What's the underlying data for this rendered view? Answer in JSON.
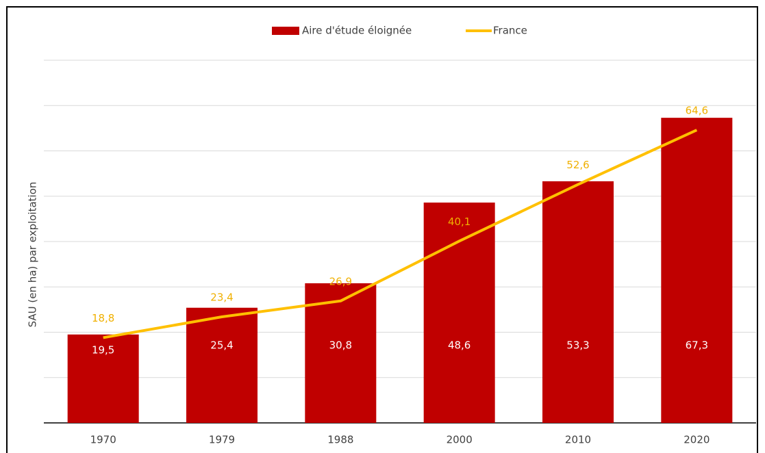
{
  "chart_data": {
    "type": "bar-line",
    "y_label": "SAU (en ha) par exploitation",
    "categories": [
      "1970",
      "1979",
      "1988",
      "2000",
      "2010",
      "2020"
    ],
    "series": [
      {
        "name": "Aire d'étude éloignée",
        "type": "bar",
        "color": "#c00000",
        "values": [
          19.5,
          25.4,
          30.8,
          48.6,
          53.3,
          67.3
        ],
        "value_labels": [
          "19,5",
          "25,4",
          "30,8",
          "48,6",
          "53,3",
          "67,3"
        ]
      },
      {
        "name": "France",
        "type": "line",
        "color": "#ffc000",
        "values": [
          18.8,
          23.4,
          26.9,
          40.1,
          52.6,
          64.6
        ],
        "value_labels": [
          "18,8",
          "23,4",
          "26,9",
          "40,1",
          "52,6",
          "64,6"
        ]
      }
    ],
    "ylim": [
      0,
      80
    ],
    "yticks": [
      0,
      10,
      20,
      30,
      40,
      50,
      60,
      70,
      80
    ],
    "grid": true,
    "legend": "top"
  }
}
